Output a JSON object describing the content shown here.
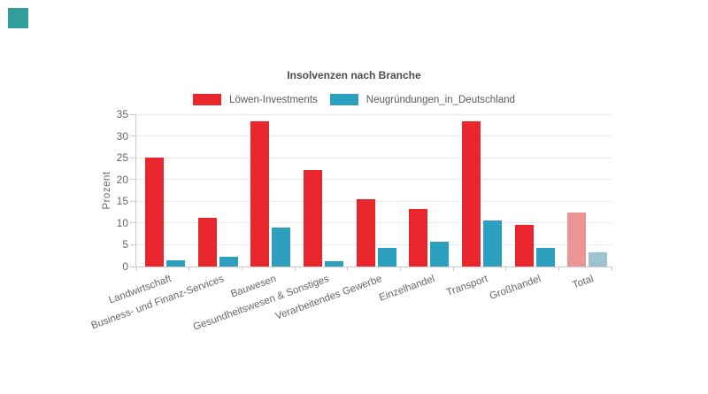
{
  "corner_square": {
    "color": "#319E9B"
  },
  "chart_data": {
    "type": "bar",
    "title": "Insolvenzen nach Branche",
    "ylabel": "Prozent",
    "xlabel": "",
    "ylim": [
      0,
      35
    ],
    "yticks": [
      0,
      5,
      10,
      15,
      20,
      25,
      30,
      35
    ],
    "grid": true,
    "legend_position": "top-center",
    "categories": [
      "Landwirtschaft",
      "Business- und Finanz-Services",
      "Bauwesen",
      "Gesundheitswesen & Sonstiges",
      "Verarbeitendes Gewerbe",
      "Einzelhandel",
      "Transport",
      "Großhandel",
      "Total"
    ],
    "series": [
      {
        "name": "Löwen-Investments",
        "color": "#E8262B",
        "faded_color": "#EC9597",
        "values": [
          25.0,
          11.2,
          33.3,
          22.2,
          15.5,
          13.3,
          33.3,
          9.6,
          12.5
        ]
      },
      {
        "name": "Neugründungen_in_Deutschland",
        "color": "#2D9FBF",
        "faded_color": "#9BC4CF",
        "values": [
          1.4,
          2.2,
          9.0,
          1.3,
          4.3,
          5.6,
          10.6,
          4.3,
          3.3
        ]
      }
    ],
    "faded_category": "Total",
    "tick_color": "#666666",
    "grid_color": "#E9E9E9",
    "axis_color": "#C9C9C9"
  }
}
